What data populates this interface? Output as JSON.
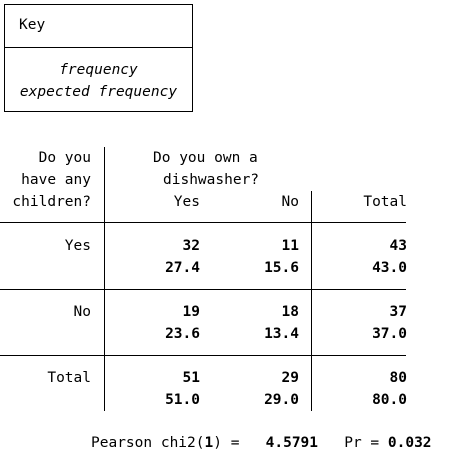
{
  "key": {
    "title": "Key",
    "line1": "frequency",
    "line2": "expected frequency"
  },
  "table": {
    "row_header": [
      "Do you",
      "have any",
      "children?"
    ],
    "col_header": [
      "Do you own a",
      "dishwasher?"
    ],
    "columns": [
      "Yes",
      "No",
      "Total"
    ],
    "rows": [
      {
        "label": "Yes",
        "freq": [
          "32",
          "11",
          "43"
        ],
        "expected": [
          "27.4",
          "15.6",
          "43.0"
        ]
      },
      {
        "label": "No",
        "freq": [
          "19",
          "18",
          "37"
        ],
        "expected": [
          "23.6",
          "13.4",
          "37.0"
        ]
      },
      {
        "label": "Total",
        "freq": [
          "51",
          "29",
          "80"
        ],
        "expected": [
          "51.0",
          "29.0",
          "80.0"
        ]
      }
    ]
  },
  "stats": {
    "chi_label": "Pearson chi2(",
    "df": "1",
    "chi_mid": ") =",
    "chi_value": "4.5791",
    "pr_label": "Pr =",
    "pr_value": "0.032"
  }
}
